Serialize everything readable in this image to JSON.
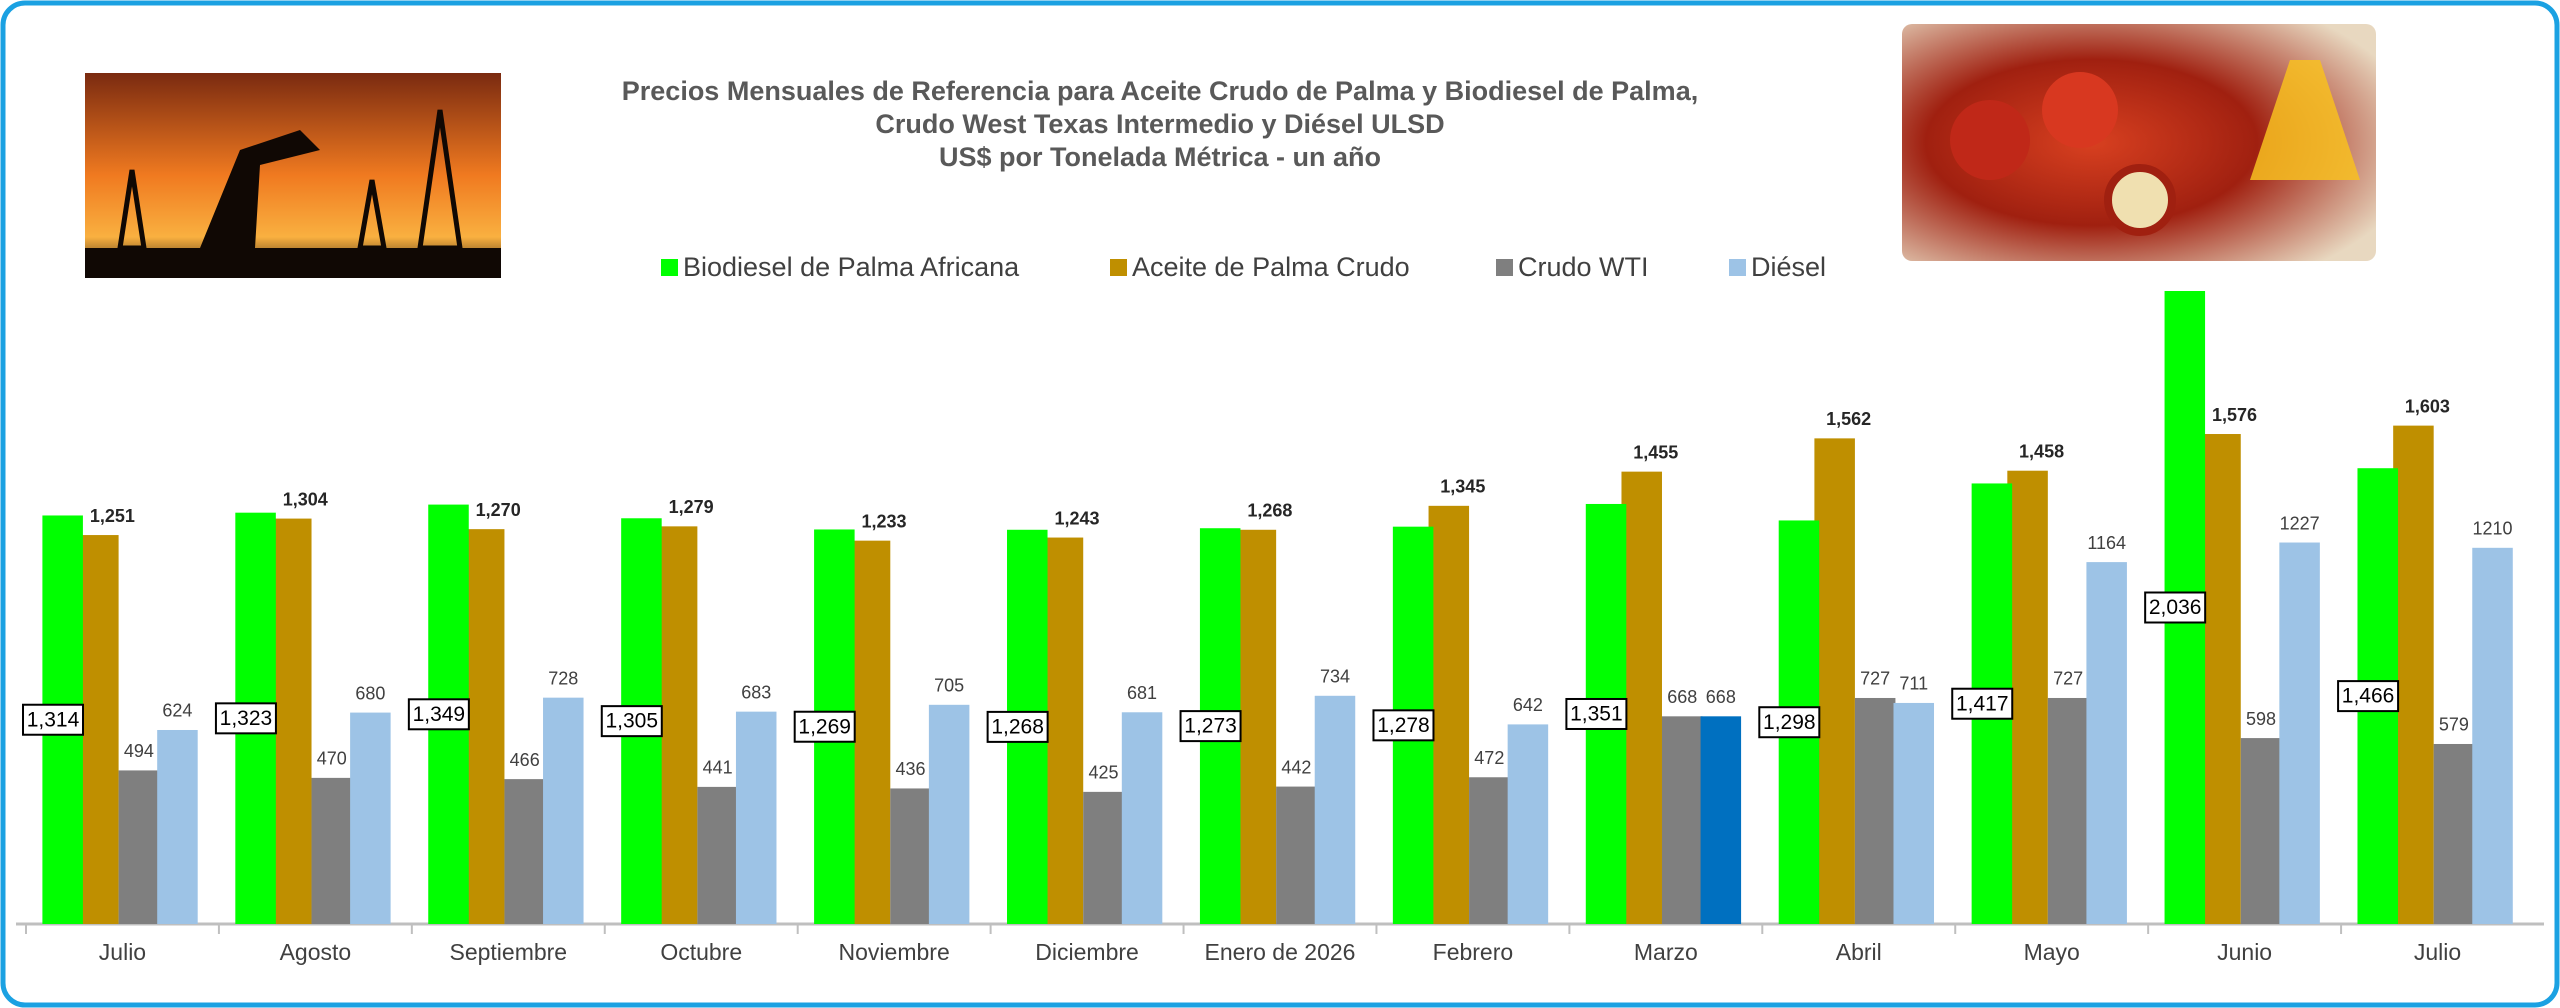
{
  "chart_data": {
    "type": "bar",
    "title": [
      "Precios Mensuales de Referencia para Aceite Crudo de Palma y Biodiesel de Palma,",
      "Crudo West Texas Intermedio y Diésel ULSD",
      "US$ por Tonelada Métrica - un año"
    ],
    "categories": [
      "Julio",
      "Agosto",
      "Septiembre",
      "Octubre",
      "Noviembre",
      "Diciembre",
      "Enero de 2026",
      "Febrero",
      "Marzo",
      "Abril",
      "Mayo",
      "Junio",
      "Julio"
    ],
    "series": [
      {
        "name": "Biodiesel de Palma Africana",
        "color": "#00ff00",
        "values": [
          1314,
          1323,
          1349,
          1305,
          1269,
          1268,
          1273,
          1278,
          1351,
          1298,
          1417,
          2036,
          1466
        ],
        "value_labels": [
          "1,314",
          "1,323",
          "1,349",
          "1,305",
          "1,269",
          "1,268",
          "1,273",
          "1,278",
          "1,351",
          "1,298",
          "1,417",
          "2,036",
          "1,466"
        ]
      },
      {
        "name": "Aceite de Palma Crudo",
        "color": "#bf8f00",
        "values": [
          1251,
          1304,
          1270,
          1279,
          1233,
          1243,
          1268,
          1345,
          1455,
          1562,
          1458,
          1576,
          1603
        ],
        "value_labels": [
          "1,251",
          "1,304",
          "1,270",
          "1,279",
          "1,233",
          "1,243",
          "1,268",
          "1,345",
          "1,455",
          "1,562",
          "1,458",
          "1,576",
          "1,603"
        ]
      },
      {
        "name": "Crudo WTI",
        "color": "#7f7f7f",
        "values": [
          494,
          470,
          466,
          441,
          436,
          425,
          442,
          472,
          668,
          727,
          727,
          598,
          579
        ]
      },
      {
        "name": "Diésel",
        "color": "#9dc3e6",
        "colors": [
          "#9dc3e6",
          "#9dc3e6",
          "#9dc3e6",
          "#9dc3e6",
          "#9dc3e6",
          "#9dc3e6",
          "#9dc3e6",
          "#9dc3e6",
          "#0070c0",
          "#9dc3e6",
          "#9dc3e6",
          "#9dc3e6",
          "#9dc3e6"
        ],
        "values": [
          624,
          680,
          728,
          683,
          705,
          681,
          734,
          642,
          668,
          711,
          1164,
          1227,
          1210
        ]
      }
    ]
  }
}
